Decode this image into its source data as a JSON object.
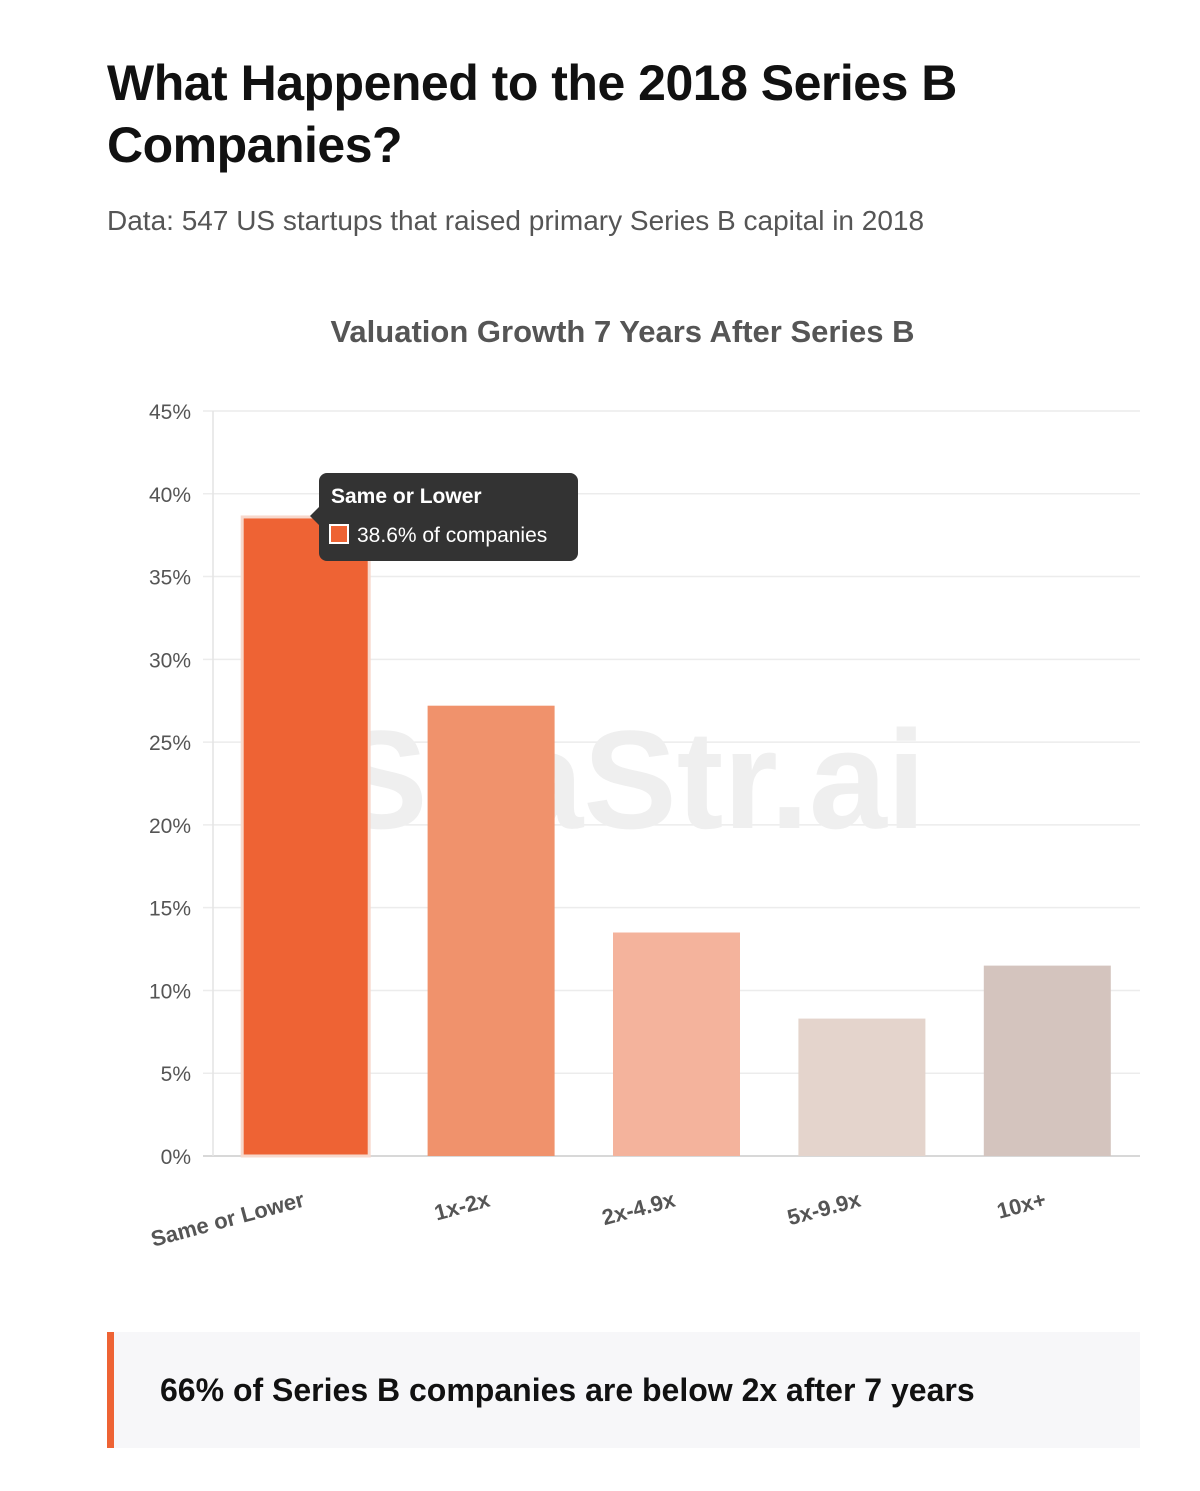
{
  "header": {
    "title": "What Happened to the 2018 Series B Companies?",
    "subtitle": "Data: 547 US startups that raised primary Series B capital in 2018"
  },
  "chart_data": {
    "type": "bar",
    "title": "Valuation Growth 7 Years After Series B",
    "categories": [
      "Same or Lower",
      "1x-2x",
      "2x-4.9x",
      "5x-9.9x",
      "10x+"
    ],
    "values": [
      38.6,
      27.2,
      13.5,
      8.3,
      11.5
    ],
    "colors": [
      "#ee6334",
      "#f0926c",
      "#f4b39c",
      "#e4d4cc",
      "#d4c4be"
    ],
    "ylim": [
      0,
      45
    ],
    "yticks": [
      "0%",
      "5%",
      "10%",
      "15%",
      "20%",
      "25%",
      "30%",
      "35%",
      "40%",
      "45%"
    ],
    "grid": true,
    "watermark": "SaaStr.ai",
    "tooltip": {
      "title": "Same or Lower",
      "body": "38.6% of companies",
      "color": "#ee6334"
    }
  },
  "callout": {
    "text": "66% of Series B companies are below 2x after 7 years",
    "accent": "#ee6334"
  }
}
